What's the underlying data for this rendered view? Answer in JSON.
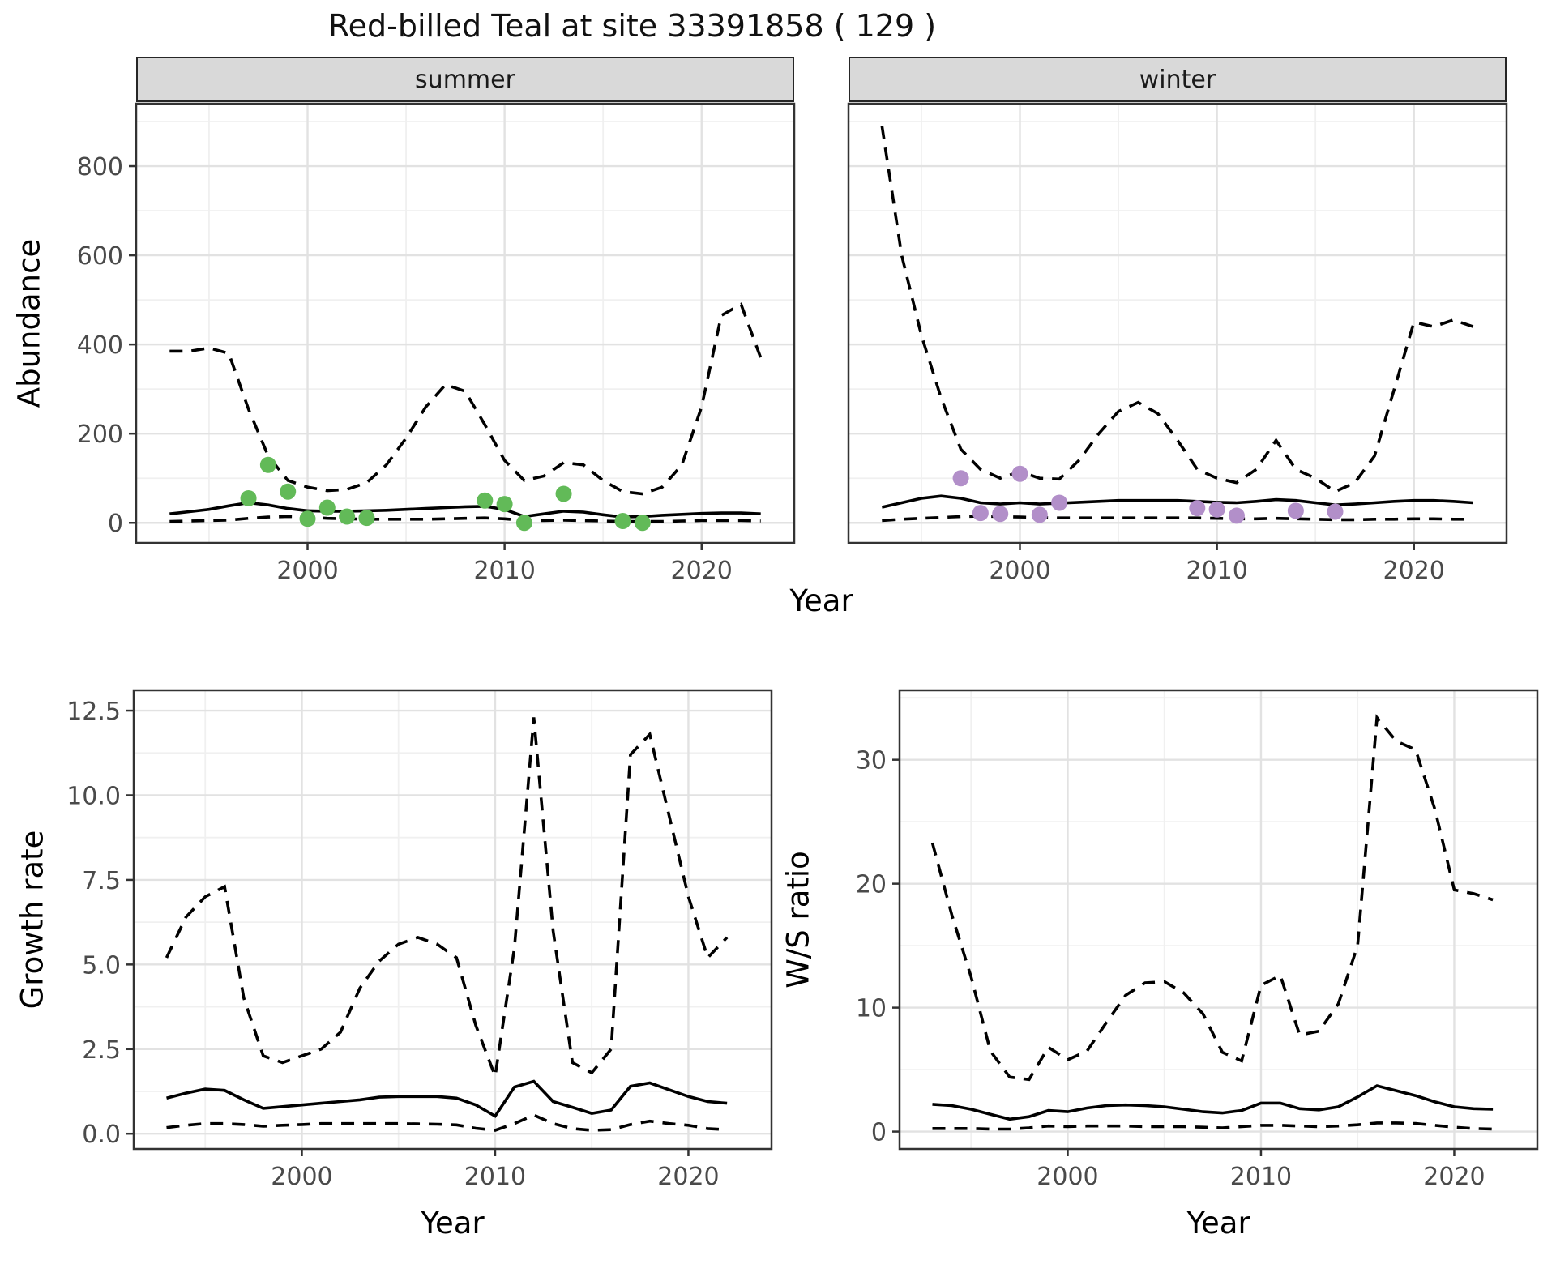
{
  "title": "Red-billed Teal at site 33391858 ( 129 )",
  "facets": {
    "summer": "summer",
    "winter": "winter"
  },
  "labels": {
    "abundance": "Abundance",
    "growth_rate": "Growth rate",
    "ws_ratio": "W/S ratio",
    "year": "Year"
  },
  "colors": {
    "summer_point": "#62ba58",
    "winter_point": "#b28fc9",
    "line": "#000000",
    "strip_bg": "#d9d9d9",
    "grid_major": "#e2e2e2",
    "grid_minor": "#f0f0f0",
    "panel_border": "#333333",
    "tick_text": "#4a4a4a"
  },
  "chart_data": [
    {
      "id": "abundance_summer",
      "type": "line",
      "facet_label": "summer",
      "ylabel": "Abundance",
      "xlabel": "Year",
      "xlim": [
        1991.3,
        2024.7
      ],
      "ylim": [
        -45,
        940
      ],
      "xticks": [
        2000,
        2010,
        2020
      ],
      "xtick_labels": [
        "2000",
        "2010",
        "2020"
      ],
      "x_minor": [
        1995,
        2005,
        2015
      ],
      "yticks": [
        0,
        200,
        400,
        600,
        800
      ],
      "ytick_labels": [
        "0",
        "200",
        "400",
        "600",
        "800"
      ],
      "y_minor": [
        100,
        300,
        500,
        700,
        900
      ],
      "x": [
        1993,
        1994,
        1995,
        1996,
        1997,
        1998,
        1999,
        2000,
        2001,
        2002,
        2003,
        2004,
        2005,
        2006,
        2007,
        2008,
        2009,
        2010,
        2011,
        2012,
        2013,
        2014,
        2015,
        2016,
        2017,
        2018,
        2019,
        2020,
        2021,
        2022,
        2023
      ],
      "series": [
        {
          "name": "upper_95_CI",
          "type": "line",
          "dashed": true,
          "values": [
            385,
            385,
            392,
            380,
            255,
            150,
            95,
            80,
            72,
            75,
            90,
            130,
            190,
            260,
            310,
            295,
            220,
            140,
            95,
            105,
            135,
            130,
            95,
            70,
            65,
            80,
            130,
            260,
            465,
            490,
            370
          ]
        },
        {
          "name": "median",
          "type": "line",
          "dashed": false,
          "values": [
            20,
            25,
            30,
            38,
            45,
            40,
            32,
            27,
            26,
            26,
            27,
            28,
            30,
            32,
            34,
            36,
            37,
            30,
            14,
            20,
            26,
            24,
            18,
            13,
            14,
            17,
            19,
            21,
            22,
            22,
            20
          ]
        },
        {
          "name": "lower_95_CI",
          "type": "line",
          "dashed": true,
          "values": [
            3,
            4,
            5,
            6,
            10,
            13,
            14,
            13,
            10,
            9,
            8,
            8,
            8,
            8,
            9,
            10,
            11,
            9,
            5,
            5,
            6,
            5,
            4,
            3,
            3,
            3,
            4,
            5,
            5,
            5,
            4
          ]
        },
        {
          "name": "observed_counts",
          "type": "points",
          "color": "#62ba58",
          "px": [
            1997,
            1998,
            1999,
            2000,
            2001,
            2002,
            2003,
            2009,
            2010,
            2011,
            2013,
            2016,
            2017
          ],
          "py": [
            55,
            130,
            70,
            9,
            34,
            14,
            11,
            50,
            42,
            0,
            65,
            4,
            0
          ]
        }
      ]
    },
    {
      "id": "abundance_winter",
      "type": "line",
      "facet_label": "winter",
      "ylabel": "Abundance",
      "xlabel": "Year",
      "xlim": [
        1991.3,
        2024.7
      ],
      "ylim": [
        -45,
        940
      ],
      "xticks": [
        2000,
        2010,
        2020
      ],
      "xtick_labels": [
        "2000",
        "2010",
        "2020"
      ],
      "x_minor": [
        1995,
        2005,
        2015
      ],
      "yticks": [
        0,
        200,
        400,
        600,
        800
      ],
      "ytick_labels": [
        "0",
        "200",
        "400",
        "600",
        "800"
      ],
      "y_minor": [
        100,
        300,
        500,
        700,
        900
      ],
      "x": [
        1993,
        1994,
        1995,
        1996,
        1997,
        1998,
        1999,
        2000,
        2001,
        2002,
        2003,
        2004,
        2005,
        2006,
        2007,
        2008,
        2009,
        2010,
        2011,
        2012,
        2013,
        2014,
        2015,
        2016,
        2017,
        2018,
        2019,
        2020,
        2021,
        2022,
        2023
      ],
      "series": [
        {
          "name": "upper_95_CI",
          "type": "line",
          "dashed": true,
          "values": [
            890,
            600,
            420,
            280,
            165,
            120,
            100,
            115,
            100,
            98,
            140,
            200,
            250,
            270,
            245,
            185,
            120,
            100,
            90,
            120,
            185,
            120,
            100,
            70,
            90,
            150,
            300,
            450,
            440,
            455,
            440
          ]
        },
        {
          "name": "median",
          "type": "line",
          "dashed": false,
          "values": [
            35,
            45,
            55,
            60,
            55,
            45,
            42,
            45,
            42,
            44,
            46,
            48,
            50,
            50,
            50,
            50,
            48,
            46,
            45,
            48,
            52,
            50,
            45,
            40,
            42,
            45,
            48,
            50,
            50,
            48,
            45
          ]
        },
        {
          "name": "lower_95_CI",
          "type": "line",
          "dashed": true,
          "values": [
            5,
            8,
            10,
            12,
            14,
            15,
            14,
            13,
            12,
            11,
            11,
            11,
            11,
            11,
            11,
            11,
            11,
            10,
            9,
            9,
            10,
            9,
            8,
            7,
            7,
            8,
            8,
            9,
            9,
            8,
            8
          ]
        },
        {
          "name": "observed_counts",
          "type": "points",
          "color": "#b28fc9",
          "px": [
            1997,
            1998,
            1999,
            2000,
            2001,
            2002,
            2009,
            2010,
            2011,
            2014,
            2016
          ],
          "py": [
            100,
            22,
            20,
            110,
            18,
            45,
            33,
            30,
            16,
            27,
            25
          ]
        }
      ]
    },
    {
      "id": "growth_rate",
      "type": "line",
      "ylabel": "Growth rate",
      "xlabel": "Year",
      "xlim": [
        1991.3,
        2024.3
      ],
      "ylim": [
        -0.45,
        13.1
      ],
      "xticks": [
        2000,
        2010,
        2020
      ],
      "xtick_labels": [
        "2000",
        "2010",
        "2020"
      ],
      "x_minor": [
        1995,
        2005,
        2015
      ],
      "yticks": [
        0,
        2.5,
        5,
        7.5,
        10,
        12.5
      ],
      "ytick_labels": [
        "0.0",
        "2.5",
        "5.0",
        "7.5",
        "10.0",
        "12.5"
      ],
      "y_minor": [
        1.25,
        3.75,
        6.25,
        8.75,
        11.25
      ],
      "x": [
        1993,
        1994,
        1995,
        1996,
        1997,
        1998,
        1999,
        2000,
        2001,
        2002,
        2003,
        2004,
        2005,
        2006,
        2007,
        2008,
        2009,
        2010,
        2011,
        2012,
        2013,
        2014,
        2015,
        2016,
        2017,
        2018,
        2019,
        2020,
        2021,
        2022
      ],
      "series": [
        {
          "name": "upper_95_CI",
          "type": "line",
          "dashed": true,
          "values": [
            5.2,
            6.4,
            7.0,
            7.3,
            4.0,
            2.3,
            2.1,
            2.3,
            2.5,
            3.0,
            4.3,
            5.1,
            5.6,
            5.8,
            5.6,
            5.2,
            3.2,
            1.7,
            5.5,
            12.3,
            6.0,
            2.1,
            1.8,
            2.5,
            11.2,
            11.8,
            9.4,
            7.0,
            5.2,
            5.8
          ]
        },
        {
          "name": "median",
          "type": "line",
          "dashed": false,
          "values": [
            1.05,
            1.2,
            1.32,
            1.28,
            1.0,
            0.75,
            0.8,
            0.85,
            0.9,
            0.95,
            1.0,
            1.08,
            1.1,
            1.1,
            1.1,
            1.05,
            0.85,
            0.52,
            1.38,
            1.55,
            0.95,
            0.78,
            0.6,
            0.7,
            1.4,
            1.5,
            1.3,
            1.1,
            0.95,
            0.9
          ]
        },
        {
          "name": "lower_95_CI",
          "type": "line",
          "dashed": true,
          "values": [
            0.18,
            0.25,
            0.3,
            0.3,
            0.27,
            0.22,
            0.25,
            0.27,
            0.3,
            0.3,
            0.3,
            0.3,
            0.3,
            0.29,
            0.28,
            0.26,
            0.16,
            0.1,
            0.3,
            0.55,
            0.3,
            0.15,
            0.1,
            0.12,
            0.27,
            0.37,
            0.3,
            0.25,
            0.15,
            0.12
          ]
        }
      ]
    },
    {
      "id": "ws_ratio",
      "type": "line",
      "ylabel": "W/S ratio",
      "xlabel": "Year",
      "xlim": [
        1991.3,
        2024.3
      ],
      "ylim": [
        -1.4,
        35.6
      ],
      "xticks": [
        2000,
        2010,
        2020
      ],
      "xtick_labels": [
        "2000",
        "2010",
        "2020"
      ],
      "x_minor": [
        1995,
        2005,
        2015
      ],
      "yticks": [
        0,
        10,
        20,
        30
      ],
      "ytick_labels": [
        "0",
        "10",
        "20",
        "30"
      ],
      "y_minor": [
        5,
        15,
        25,
        35
      ],
      "x": [
        1993,
        1994,
        1995,
        1996,
        1997,
        1998,
        1999,
        2000,
        2001,
        2002,
        2003,
        2004,
        2005,
        2006,
        2007,
        2008,
        2009,
        2010,
        2011,
        2012,
        2013,
        2014,
        2015,
        2016,
        2017,
        2018,
        2019,
        2020,
        2021,
        2022
      ],
      "series": [
        {
          "name": "upper_95_CI",
          "type": "line",
          "dashed": true,
          "values": [
            23.3,
            17.5,
            12.5,
            6.5,
            4.4,
            4.2,
            6.8,
            5.8,
            6.5,
            8.8,
            11.0,
            12.0,
            12.1,
            11.2,
            9.5,
            6.4,
            5.7,
            11.8,
            12.6,
            7.8,
            8.1,
            10.3,
            15.0,
            33.4,
            31.5,
            30.8,
            26.0,
            19.5,
            19.2,
            18.7
          ]
        },
        {
          "name": "median",
          "type": "line",
          "dashed": false,
          "values": [
            2.2,
            2.1,
            1.8,
            1.4,
            1.0,
            1.2,
            1.7,
            1.6,
            1.9,
            2.1,
            2.15,
            2.1,
            2.0,
            1.8,
            1.6,
            1.5,
            1.7,
            2.3,
            2.3,
            1.85,
            1.75,
            2.0,
            2.8,
            3.7,
            3.3,
            2.9,
            2.4,
            2.0,
            1.85,
            1.8
          ]
        },
        {
          "name": "lower_95_CI",
          "type": "line",
          "dashed": true,
          "values": [
            0.25,
            0.25,
            0.25,
            0.2,
            0.2,
            0.3,
            0.45,
            0.4,
            0.45,
            0.45,
            0.45,
            0.4,
            0.4,
            0.4,
            0.35,
            0.3,
            0.4,
            0.5,
            0.5,
            0.45,
            0.4,
            0.45,
            0.55,
            0.7,
            0.7,
            0.65,
            0.5,
            0.35,
            0.25,
            0.2
          ]
        }
      ]
    }
  ]
}
